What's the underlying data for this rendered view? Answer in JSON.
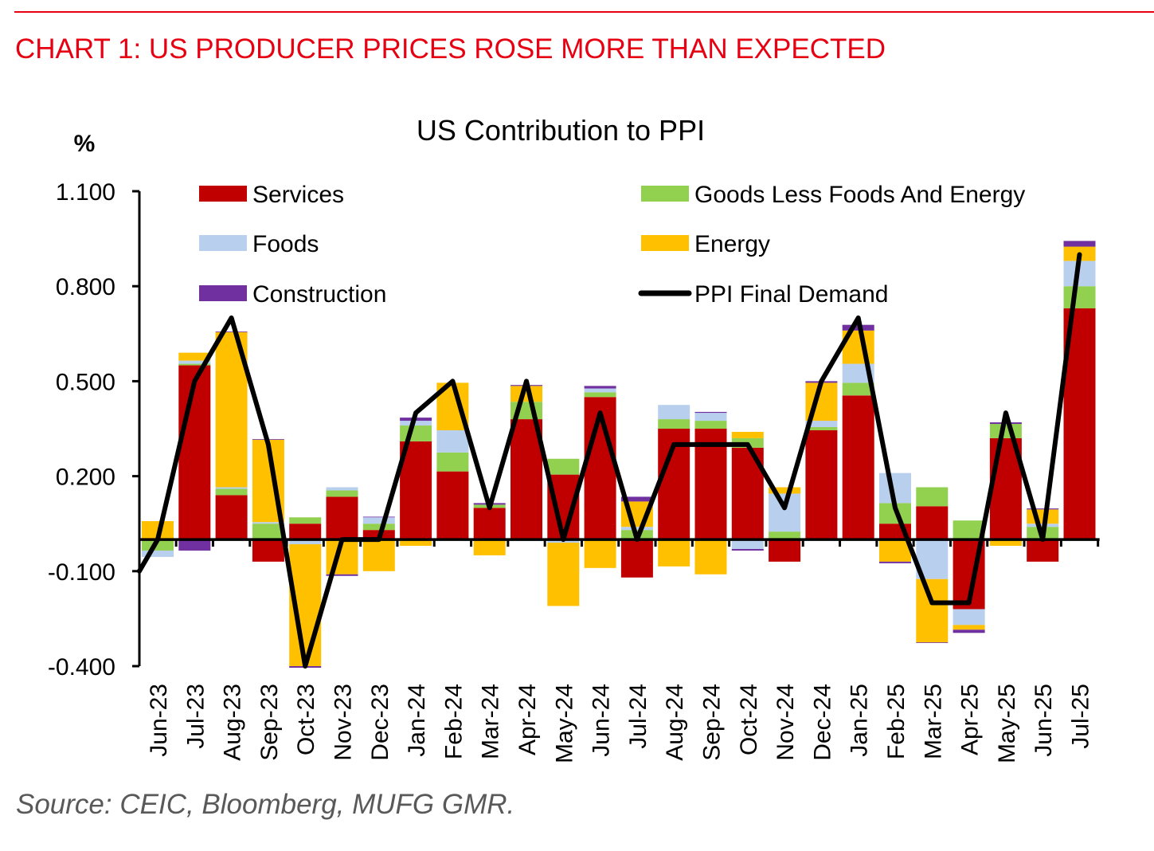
{
  "header": {
    "headline": "CHART 1: US PRODUCER PRICES ROSE MORE THAN EXPECTED"
  },
  "footer": {
    "source": "Source: CEIC, Bloomberg, MUFG GMR."
  },
  "colors": {
    "headline": "#e60012",
    "services": "#c00000",
    "goods": "#92d050",
    "foods": "#b8cfee",
    "energy": "#ffc000",
    "construction": "#7030a0",
    "ppi": "#000000"
  },
  "chart_data": {
    "type": "bar",
    "stacked": true,
    "title": "US Contribution to PPI",
    "ylabel": "%",
    "xlabel": "",
    "ylim": [
      -0.4,
      1.1
    ],
    "yticks": [
      -0.4,
      -0.1,
      0.2,
      0.5,
      0.8,
      1.1
    ],
    "ytick_labels": [
      "-0.400",
      "-0.100",
      "0.200",
      "0.500",
      "0.800",
      "1.100"
    ],
    "grid": false,
    "legend_position": "top",
    "categories": [
      "Jun-23",
      "Jul-23",
      "Aug-23",
      "Sep-23",
      "Oct-23",
      "Nov-23",
      "Dec-23",
      "Jan-24",
      "Feb-24",
      "Mar-24",
      "Apr-24",
      "May-24",
      "Jun-24",
      "Jul-24",
      "Aug-24",
      "Sep-24",
      "Oct-24",
      "Nov-24",
      "Dec-24",
      "Jan-25",
      "Feb-25",
      "Mar-25",
      "Apr-25",
      "May-25",
      "Jun-25",
      "Jul-25"
    ],
    "series": [
      {
        "name": "Services",
        "key": "services",
        "type": "bar",
        "values": [
          0.0,
          0.55,
          0.14,
          -0.07,
          0.05,
          0.135,
          0.03,
          0.31,
          0.215,
          0.1,
          0.38,
          0.205,
          0.45,
          -0.12,
          0.35,
          0.35,
          0.29,
          -0.07,
          0.345,
          0.455,
          0.05,
          0.105,
          -0.22,
          0.32,
          -0.07,
          0.73
        ]
      },
      {
        "name": "Goods Less Foods And Energy",
        "key": "goods",
        "type": "bar",
        "values": [
          -0.035,
          0.005,
          0.02,
          0.05,
          0.02,
          0.02,
          0.02,
          0.05,
          0.06,
          0.01,
          0.055,
          0.05,
          0.015,
          0.03,
          0.03,
          0.025,
          0.03,
          0.025,
          0.01,
          0.04,
          0.065,
          0.06,
          0.06,
          0.045,
          0.04,
          0.07
        ]
      },
      {
        "name": "Foods",
        "key": "foods",
        "type": "bar",
        "values": [
          -0.02,
          0.01,
          0.005,
          0.005,
          -0.015,
          0.01,
          0.02,
          0.015,
          0.07,
          0.0,
          -0.005,
          -0.01,
          0.012,
          0.01,
          0.045,
          0.025,
          -0.03,
          0.12,
          0.02,
          0.06,
          0.095,
          -0.125,
          -0.05,
          0.0,
          0.01,
          0.08
        ]
      },
      {
        "name": "Energy",
        "key": "energy",
        "type": "bar",
        "values": [
          0.058,
          0.025,
          0.49,
          0.26,
          -0.385,
          -0.11,
          -0.1,
          -0.02,
          0.15,
          -0.05,
          0.05,
          -0.2,
          -0.09,
          0.08,
          -0.085,
          -0.11,
          0.02,
          0.02,
          0.12,
          0.105,
          -0.07,
          -0.2,
          -0.015,
          -0.02,
          0.045,
          0.045
        ]
      },
      {
        "name": "Construction",
        "key": "construction",
        "type": "bar",
        "values": [
          0.0,
          -0.035,
          0.002,
          0.002,
          -0.005,
          -0.005,
          0.002,
          0.01,
          0.0,
          0.005,
          0.003,
          0.0,
          0.008,
          0.015,
          0.0,
          0.003,
          -0.005,
          0.0,
          0.005,
          0.018,
          -0.005,
          -0.002,
          -0.01,
          0.005,
          0.003,
          0.018
        ]
      },
      {
        "name": "PPI Final Demand",
        "key": "ppi",
        "type": "line",
        "prior_value": -0.1,
        "values": [
          0.0,
          0.5,
          0.7,
          0.3,
          -0.4,
          0.0,
          0.0,
          0.4,
          0.5,
          0.1,
          0.5,
          0.0,
          0.4,
          0.0,
          0.3,
          0.3,
          0.3,
          0.1,
          0.5,
          0.7,
          0.1,
          -0.2,
          -0.2,
          0.4,
          0.0,
          0.9
        ]
      }
    ],
    "legend": [
      {
        "label": "Services",
        "key": "services",
        "kind": "box"
      },
      {
        "label": "Goods Less Foods And Energy",
        "key": "goods",
        "kind": "box"
      },
      {
        "label": "Foods",
        "key": "foods",
        "kind": "box"
      },
      {
        "label": "Energy",
        "key": "energy",
        "kind": "box"
      },
      {
        "label": "Construction",
        "key": "construction",
        "kind": "box"
      },
      {
        "label": "PPI Final Demand",
        "key": "ppi",
        "kind": "line"
      }
    ]
  }
}
